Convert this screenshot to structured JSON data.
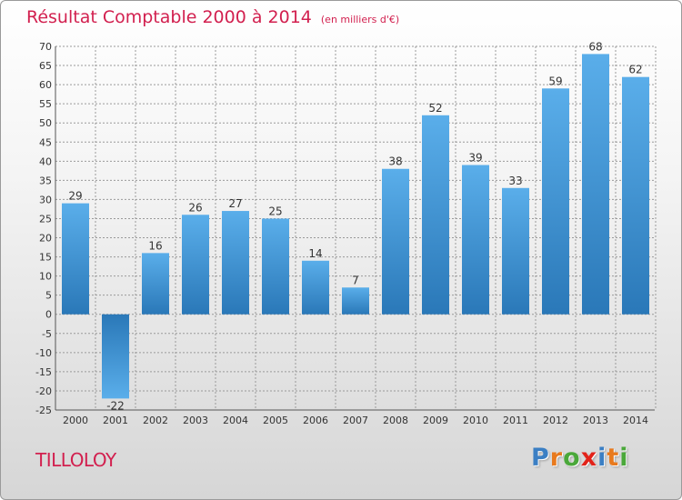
{
  "chart_data": {
    "type": "bar",
    "title": "Résultat Comptable 2000 à 2014",
    "subtitle": "(en milliers d'€)",
    "categories": [
      "2000",
      "2001",
      "2002",
      "2003",
      "2004",
      "2005",
      "2006",
      "2007",
      "2008",
      "2009",
      "2010",
      "2011",
      "2012",
      "2013",
      "2014"
    ],
    "values": [
      29,
      -22,
      16,
      26,
      27,
      25,
      14,
      7,
      38,
      52,
      39,
      33,
      59,
      68,
      62
    ],
    "yticks": [
      70,
      65,
      60,
      55,
      50,
      45,
      40,
      35,
      30,
      25,
      20,
      15,
      10,
      5,
      0,
      -5,
      -10,
      -15,
      -20,
      -25
    ],
    "ylim": [
      -25,
      70
    ],
    "xlabel": "",
    "ylabel": "",
    "grid": true,
    "bar_color_light": "#5aaeea",
    "bar_color_dark": "#2a78b8"
  },
  "commune": "TILLOLOY",
  "logo": {
    "letters": [
      "P",
      "r",
      "o",
      "x",
      "i",
      "t",
      "i"
    ],
    "colors": [
      "#3b7fc4",
      "#e87a1e",
      "#4aa83a",
      "#e2231a",
      "#3b7fc4",
      "#e87a1e",
      "#4aa83a"
    ]
  },
  "colors": {
    "title": "#d2204f",
    "grid": "#9a9a9a",
    "axis_text": "#333333"
  }
}
